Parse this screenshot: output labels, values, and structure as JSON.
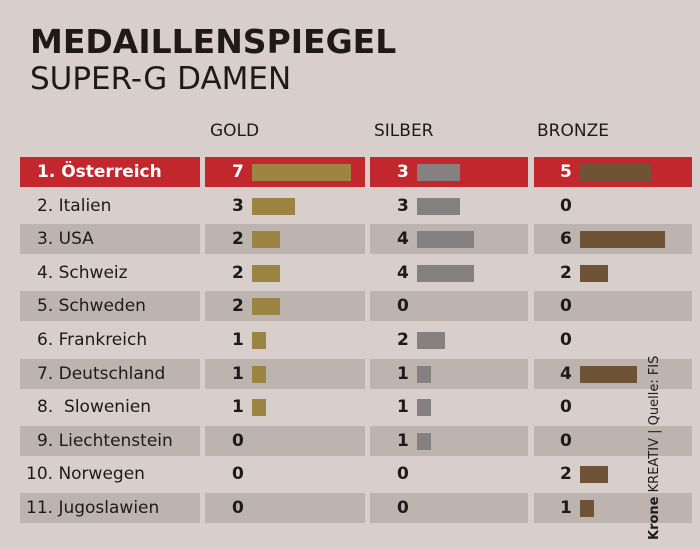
{
  "header": {
    "title": "MEDAILLENSPIEGEL",
    "subtitle": "SUPER-G DAMEN"
  },
  "credit": {
    "brand": "Krone",
    "studio": "KREATIV",
    "source": "Quelle: FIS"
  },
  "colors": {
    "background": "#d8cfcc",
    "band": "#bdb4b0",
    "highlight": "#c1272d",
    "gold": "#9c8442",
    "silber": "#858081",
    "bronze": "#6e5337"
  },
  "chart_data": {
    "type": "table",
    "columns": [
      "GOLD",
      "SILBER",
      "BRONZE"
    ],
    "rows": [
      {
        "name": "1. Österreich",
        "gold": 7,
        "silber": 3,
        "bronze": 5
      },
      {
        "name": "2. Italien",
        "gold": 3,
        "silber": 3,
        "bronze": 0
      },
      {
        "name": "3. USA",
        "gold": 2,
        "silber": 4,
        "bronze": 6
      },
      {
        "name": "4. Schweiz",
        "gold": 2,
        "silber": 4,
        "bronze": 2
      },
      {
        "name": "5. Schweden",
        "gold": 2,
        "silber": 0,
        "bronze": 0
      },
      {
        "name": "6. Frankreich",
        "gold": 1,
        "silber": 2,
        "bronze": 0
      },
      {
        "name": "7. Deutschland",
        "gold": 1,
        "silber": 1,
        "bronze": 4
      },
      {
        "name": "8.  Slowenien",
        "gold": 1,
        "silber": 1,
        "bronze": 0
      },
      {
        "name": "9. Liechtenstein",
        "gold": 0,
        "silber": 1,
        "bronze": 0
      },
      {
        "name": "10. Norwegen",
        "gold": 0,
        "silber": 0,
        "bronze": 2
      },
      {
        "name": "11. Jugoslawien",
        "gold": 0,
        "silber": 0,
        "bronze": 1
      }
    ]
  }
}
